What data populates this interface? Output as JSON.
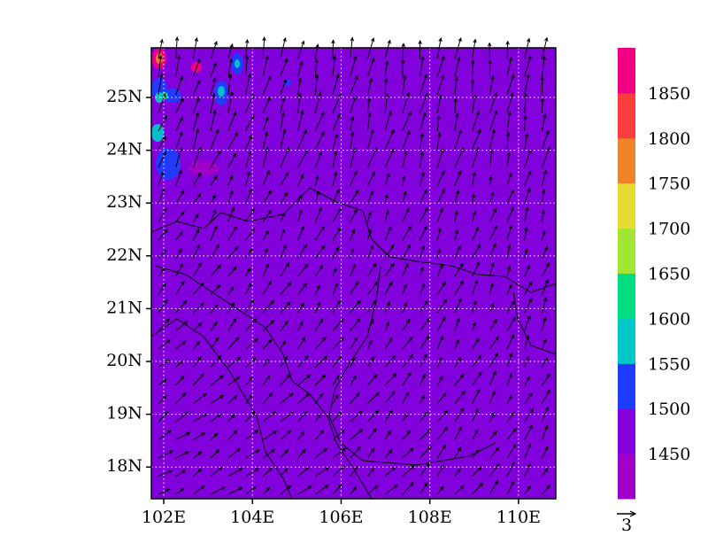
{
  "map": {
    "xlim": [
      101.72,
      110.84
    ],
    "ylim": [
      17.4,
      25.94
    ],
    "xticks": [
      {
        "value": 102,
        "label": "102E"
      },
      {
        "value": 104,
        "label": "104E"
      },
      {
        "value": 106,
        "label": "106E"
      },
      {
        "value": 108,
        "label": "108E"
      },
      {
        "value": 110,
        "label": "110E"
      }
    ],
    "yticks": [
      {
        "value": 18,
        "label": "18N"
      },
      {
        "value": 19,
        "label": "19N"
      },
      {
        "value": 20,
        "label": "20N"
      },
      {
        "value": 21,
        "label": "21N"
      },
      {
        "value": 22,
        "label": "22N"
      },
      {
        "value": 23,
        "label": "23N"
      },
      {
        "value": 24,
        "label": "24N"
      },
      {
        "value": 25,
        "label": "25N"
      }
    ],
    "fill_color": "#8200dc",
    "grid": true
  },
  "colorbar": {
    "levels": [
      1450,
      1500,
      1550,
      1600,
      1650,
      1700,
      1750,
      1800,
      1850
    ],
    "colors": [
      "#a000c8",
      "#8200dc",
      "#1e3cff",
      "#00c8c8",
      "#00dc82",
      "#a0e632",
      "#e6dc32",
      "#f08228",
      "#fa3c3c",
      "#f00082"
    ]
  },
  "vector_reference": {
    "label": "3"
  }
}
